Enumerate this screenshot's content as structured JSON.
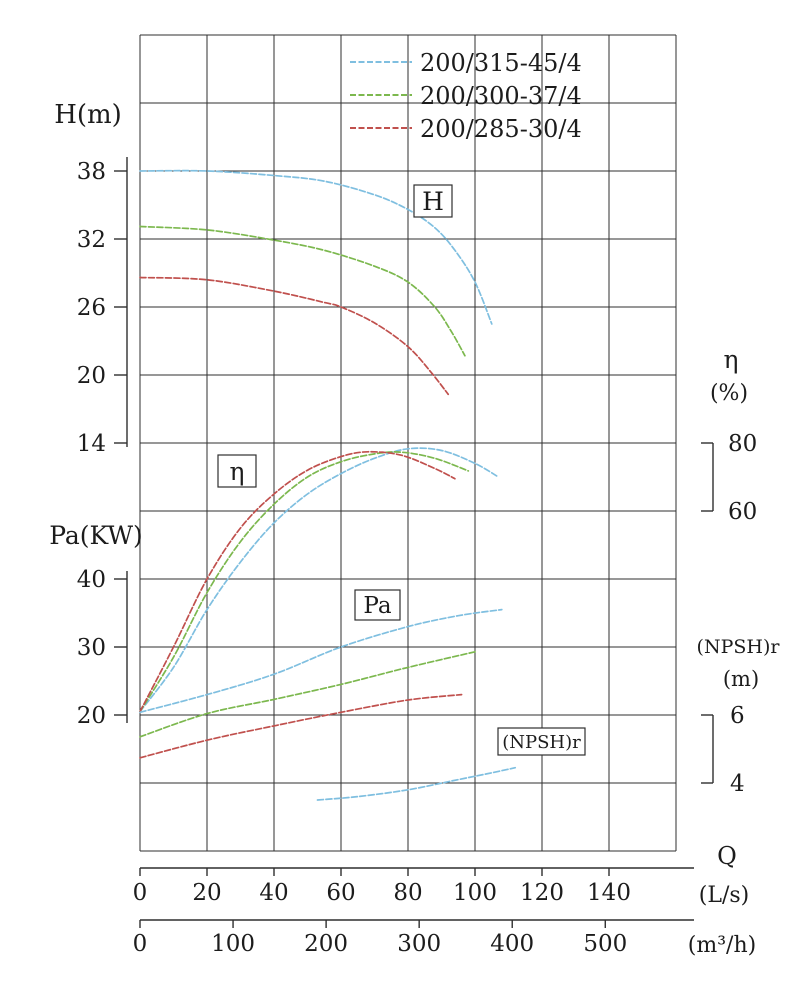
{
  "colors": {
    "blue": "#7fbfe0",
    "green": "#7cb84e",
    "red": "#c0504d",
    "grid": "#2f2f2f",
    "text": "#1c1c1c",
    "box_fill": "#ffffff"
  },
  "legend": {
    "items": [
      {
        "label": "200/315-45/4",
        "color": "blue"
      },
      {
        "label": "200/300-37/4",
        "color": "green"
      },
      {
        "label": "200/285-30/4",
        "color": "red"
      }
    ]
  },
  "chart_data": {
    "type": "line",
    "title": "",
    "x_axis": {
      "label": "Q",
      "primary_unit": {
        "label": "(L/s)",
        "values": [
          0,
          20,
          40,
          60,
          80,
          100,
          120,
          140
        ],
        "max": 160
      },
      "secondary_unit": {
        "label": "(m³/h)",
        "values": [
          0,
          100,
          200,
          300,
          400,
          500
        ],
        "to_Ls_factor": 0.277778
      }
    },
    "y_axes": {
      "H": {
        "label": "H(m)",
        "ticks": [
          38,
          32,
          26,
          20,
          14
        ]
      },
      "Pa": {
        "label": "Pa(KW)",
        "ticks": [
          40,
          30,
          20
        ]
      },
      "eta": {
        "label": "η",
        "unit": "(%)",
        "ticks": [
          80,
          60
        ]
      },
      "npsh": {
        "label": "(NPSH)r",
        "unit": "(m)",
        "ticks": [
          6,
          4
        ]
      }
    },
    "curve_labels": [
      {
        "id": "H",
        "text": "H"
      },
      {
        "id": "eta",
        "text": "η"
      },
      {
        "id": "Pa",
        "text": "Pa"
      },
      {
        "id": "npshr",
        "text": "(NPSH)r"
      }
    ],
    "series": [
      {
        "model": "200/315-45/4",
        "quantity": "H",
        "axis": "H",
        "color": "blue",
        "points": [
          [
            0,
            38
          ],
          [
            20,
            38
          ],
          [
            40,
            37.6
          ],
          [
            55,
            37.1
          ],
          [
            70,
            35.9
          ],
          [
            80,
            34.6
          ],
          [
            88,
            33
          ],
          [
            94,
            31
          ],
          [
            100,
            28.2
          ],
          [
            105,
            24.5
          ]
        ]
      },
      {
        "model": "200/300-37/4",
        "quantity": "H",
        "axis": "H",
        "color": "green",
        "points": [
          [
            0,
            33.1
          ],
          [
            20,
            32.8
          ],
          [
            40,
            31.9
          ],
          [
            55,
            31
          ],
          [
            70,
            29.6
          ],
          [
            80,
            28.2
          ],
          [
            88,
            26
          ],
          [
            93,
            23.8
          ],
          [
            97,
            21.7
          ]
        ]
      },
      {
        "model": "200/285-30/4",
        "quantity": "H",
        "axis": "H",
        "color": "red",
        "points": [
          [
            0,
            28.6
          ],
          [
            20,
            28.4
          ],
          [
            40,
            27.4
          ],
          [
            55,
            26.4
          ],
          [
            60,
            26
          ],
          [
            70,
            24.6
          ],
          [
            80,
            22.5
          ],
          [
            87,
            20.2
          ],
          [
            92,
            18.3
          ]
        ]
      },
      {
        "model": "200/315-45/4",
        "quantity": "eta",
        "axis": "eta",
        "color": "blue",
        "points": [
          [
            0,
            1
          ],
          [
            10,
            14
          ],
          [
            20,
            31
          ],
          [
            30,
            45
          ],
          [
            40,
            56.5
          ],
          [
            50,
            65
          ],
          [
            60,
            71
          ],
          [
            70,
            75.5
          ],
          [
            80,
            78.3
          ],
          [
            90,
            77.8
          ],
          [
            100,
            74
          ],
          [
            107,
            70
          ]
        ]
      },
      {
        "model": "200/300-37/4",
        "quantity": "eta",
        "axis": "eta",
        "color": "green",
        "points": [
          [
            0,
            1
          ],
          [
            10,
            17
          ],
          [
            20,
            36
          ],
          [
            30,
            51
          ],
          [
            40,
            62
          ],
          [
            50,
            70
          ],
          [
            60,
            74.5
          ],
          [
            70,
            76.8
          ],
          [
            78,
            77.3
          ],
          [
            88,
            75.5
          ],
          [
            98,
            71.8
          ]
        ]
      },
      {
        "model": "200/285-30/4",
        "quantity": "eta",
        "axis": "eta",
        "color": "red",
        "points": [
          [
            0,
            1
          ],
          [
            10,
            20
          ],
          [
            20,
            40
          ],
          [
            30,
            55
          ],
          [
            40,
            65
          ],
          [
            50,
            72
          ],
          [
            60,
            76
          ],
          [
            68,
            77.4
          ],
          [
            78,
            76.4
          ],
          [
            88,
            72.5
          ],
          [
            94,
            69.5
          ]
        ]
      },
      {
        "model": "200/315-45/4",
        "quantity": "Pa",
        "axis": "Pa",
        "color": "blue",
        "points": [
          [
            0,
            20.4
          ],
          [
            20,
            23
          ],
          [
            40,
            26
          ],
          [
            60,
            30
          ],
          [
            80,
            33
          ],
          [
            95,
            34.6
          ],
          [
            108,
            35.5
          ]
        ]
      },
      {
        "model": "200/300-37/4",
        "quantity": "Pa",
        "axis": "Pa",
        "color": "green",
        "points": [
          [
            0,
            16.8
          ],
          [
            20,
            20.2
          ],
          [
            40,
            22.3
          ],
          [
            60,
            24.5
          ],
          [
            80,
            27
          ],
          [
            100,
            29.3
          ]
        ]
      },
      {
        "model": "200/285-30/4",
        "quantity": "Pa",
        "axis": "Pa",
        "color": "red",
        "points": [
          [
            0,
            13.7
          ],
          [
            20,
            16.3
          ],
          [
            40,
            18.4
          ],
          [
            60,
            20.4
          ],
          [
            80,
            22.2
          ],
          [
            96,
            23
          ]
        ]
      },
      {
        "model": "200/315-45/4",
        "quantity": "NPSHr",
        "axis": "npsh",
        "color": "blue",
        "points": [
          [
            53,
            3.5
          ],
          [
            65,
            3.6
          ],
          [
            80,
            3.8
          ],
          [
            95,
            4.1
          ],
          [
            105,
            4.3
          ],
          [
            112,
            4.45
          ]
        ]
      }
    ],
    "axis_ranges": {
      "Q_Ls": [
        0,
        160
      ],
      "H_m": [
        14,
        38
      ],
      "Pa_KW": [
        20,
        40
      ],
      "eta_pct": [
        60,
        80
      ],
      "NPSHr_m": [
        4,
        6
      ]
    },
    "grid": "on",
    "legend_position": "top-center"
  }
}
